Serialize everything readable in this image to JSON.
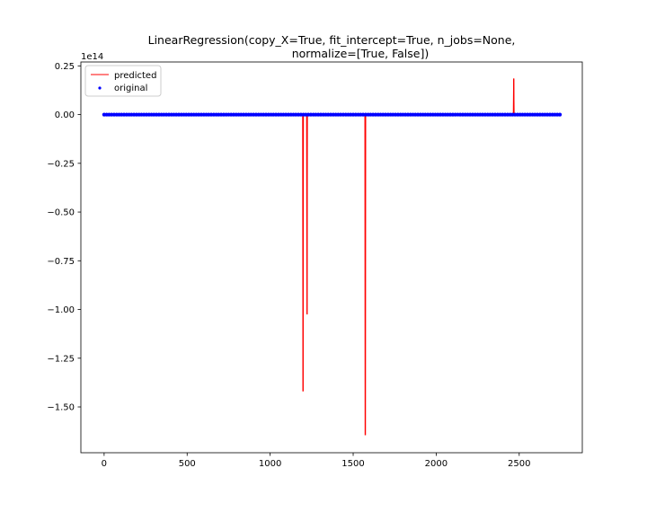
{
  "chart_data": {
    "type": "line",
    "title_line1": "LinearRegression(copy_X=True, fit_intercept=True, n_jobs=None,",
    "title_line2": "normalize=[True, False])",
    "y_offset_label": "1e14",
    "xlabel": "",
    "ylabel": "",
    "xlim": [
      -140,
      2880
    ],
    "ylim": [
      -1.735,
      0.27
    ],
    "x_ticks": [
      0,
      500,
      1000,
      1500,
      2000,
      2500
    ],
    "x_tick_labels": [
      "0",
      "500",
      "1000",
      "1500",
      "2000",
      "2500"
    ],
    "y_ticks": [
      0.25,
      0.0,
      -0.25,
      -0.5,
      -0.75,
      -1.0,
      -1.25,
      -1.5
    ],
    "y_tick_labels": [
      "0.25",
      "0.00",
      "−0.25",
      "−0.50",
      "−0.75",
      "−1.00",
      "−1.25",
      "−1.50"
    ],
    "grid": false,
    "legend_position": "top-left",
    "series": [
      {
        "name": "predicted",
        "kind": "line",
        "color": "#ff0000",
        "x_range": [
          0,
          2745
        ],
        "baseline": 0.0,
        "spikes": [
          {
            "x": 1198,
            "y": -1.42
          },
          {
            "x": 1222,
            "y": -1.025
          },
          {
            "x": 1573,
            "y": -1.645
          },
          {
            "x": 2467,
            "y": 0.185
          }
        ]
      },
      {
        "name": "original",
        "kind": "scatter",
        "color": "#0000ff",
        "x_range": [
          0,
          2745
        ],
        "y": 0.0
      }
    ]
  }
}
